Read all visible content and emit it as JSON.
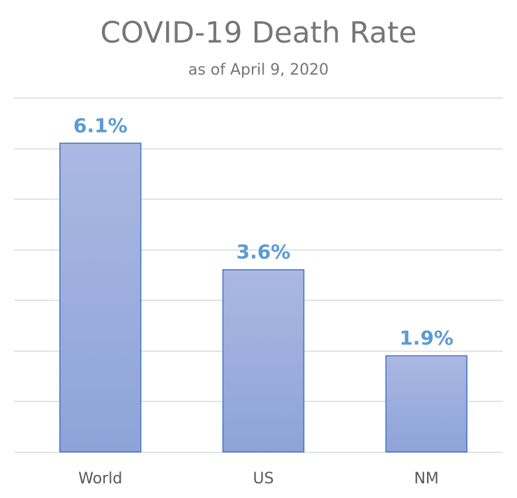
{
  "chart_data": {
    "type": "bar",
    "title": "COVID-19 Death Rate",
    "subtitle": "as of April 9, 2020",
    "categories": [
      "World",
      "US",
      "NM"
    ],
    "values": [
      6.1,
      3.6,
      1.9
    ],
    "data_labels": [
      "6.1%",
      "3.6%",
      "1.9%"
    ],
    "xlabel": "",
    "ylabel": "",
    "ylim": [
      0,
      7
    ],
    "grid": true,
    "y_axis_labels_visible": false,
    "colors": {
      "bar_fill_top": "#aab8e2",
      "bar_fill_bottom": "#8ea3d9",
      "bar_stroke": "#4472c4",
      "data_label": "#5b9bd5",
      "gridline": "#d9d9d9"
    }
  }
}
